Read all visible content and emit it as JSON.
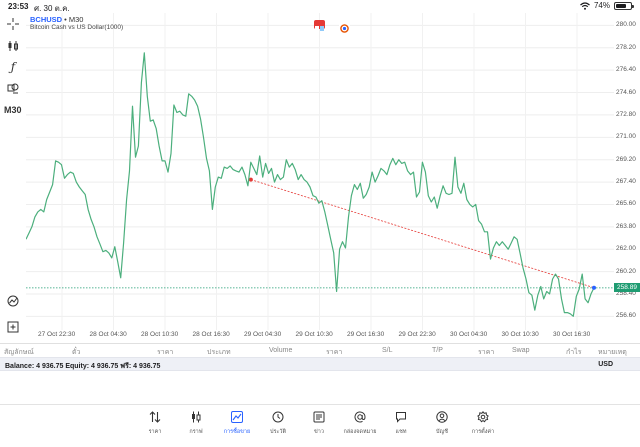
{
  "status_bar": {
    "time": "23:53",
    "date": "ศ. 30 ต.ค.",
    "battery": "74%",
    "battery_level": 0.74
  },
  "left_toolbar": {
    "items": [
      {
        "name": "crosshair-icon"
      },
      {
        "name": "candlestick-icon"
      },
      {
        "name": "function-icon"
      },
      {
        "name": "objects-icon"
      }
    ],
    "timeframe": "M30",
    "bottom_items": [
      {
        "name": "indicator-list-icon"
      },
      {
        "name": "add-indicator-icon"
      }
    ]
  },
  "chart": {
    "symbol": "BCHUSD",
    "timeframe_suffix": " • M30",
    "description": "Bitcoin Cash vs US Dollar(1000)",
    "current_price_label": "258.89",
    "colors": {
      "line": "#4caf7d",
      "trendline": "#e53935",
      "price_line": "#1f9c72",
      "accent": "#2962ff"
    }
  },
  "chart_data": {
    "type": "line",
    "ylim": [
      255.5,
      281.0
    ],
    "price_ticks": [
      "280.00",
      "278.20",
      "276.40",
      "274.60",
      "272.80",
      "271.00",
      "269.20",
      "267.40",
      "265.60",
      "263.80",
      "262.00",
      "260.20",
      "258.40",
      "256.60"
    ],
    "time_ticks": [
      "27 Oct 22:30",
      "28 Oct 04:30",
      "28 Oct 10:30",
      "28 Oct 16:30",
      "29 Oct 04:30",
      "29 Oct 10:30",
      "29 Oct 16:30",
      "29 Oct 22:30",
      "30 Oct 04:30",
      "30 Oct 10:30",
      "30 Oct 16:30"
    ],
    "series": [
      {
        "values": [
          262.8,
          263.3,
          263.8,
          264.6,
          265.0,
          265.2,
          265.0,
          266.0,
          266.6,
          267.2,
          269.1,
          269.0,
          268.8,
          267.7,
          268.0,
          268.2,
          268.1,
          267.4,
          267.0,
          266.7,
          266.4,
          265.2,
          264.4,
          263.8,
          263.0,
          262.4,
          261.8,
          261.9,
          261.7,
          261.3,
          262.2,
          261.0,
          259.7,
          262.5,
          266.0,
          268.3,
          273.5,
          269.4,
          270.3,
          275.4,
          277.8,
          274.3,
          272.3,
          272.4,
          271.7,
          270.3,
          269.1,
          269.1,
          268.2,
          269.7,
          273.6,
          273.0,
          273.1,
          272.8,
          272.7,
          274.5,
          274.3,
          274.0,
          273.5,
          272.5,
          271.0,
          269.3,
          268.3,
          265.2,
          267.0,
          267.8,
          267.7,
          268.6,
          268.5,
          268.7,
          268.4,
          268.3,
          268.2,
          268.6,
          268.0,
          267.1,
          269.0,
          268.5,
          268.0,
          269.5,
          267.8,
          268.9,
          268.1,
          268.5,
          267.4,
          268.0,
          267.6,
          267.8,
          269.2,
          268.6,
          268.9,
          268.4,
          267.6,
          268.0,
          267.6,
          267.4,
          267.0,
          266.3,
          266.2,
          265.7,
          265.9,
          265.0,
          263.9,
          262.8,
          261.7,
          258.6,
          262.0,
          262.6,
          262.1,
          264.6,
          266.3,
          267.2,
          266.8,
          267.3,
          266.1,
          266.4,
          267.0,
          268.2,
          267.4,
          267.9,
          268.5,
          268.3,
          268.0,
          268.8,
          269.3,
          268.8,
          269.2,
          268.9,
          269.0,
          268.3,
          268.0,
          268.2,
          266.2,
          266.6,
          269.0,
          268.2,
          266.3,
          265.8,
          266.2,
          265.3,
          266.3,
          267.1,
          266.5,
          266.4,
          266.5,
          269.4,
          267.0,
          266.5,
          267.3,
          266.0,
          265.6,
          265.4,
          265.6,
          264.3,
          264.0,
          263.4,
          263.4,
          261.2,
          262.1,
          262.6,
          262.3,
          262.6,
          262.3,
          262.0,
          262.5,
          263.0,
          262.8,
          261.7,
          260.5,
          259.6,
          258.5,
          258.3,
          257.1,
          258.3,
          259.0,
          258.0,
          258.6,
          258.4,
          259.6,
          260.0,
          259.6,
          258.0,
          256.9,
          256.9,
          256.8,
          256.6,
          258.2,
          258.8,
          260.0,
          258.0,
          257.7,
          258.4,
          258.9
        ]
      }
    ],
    "trendline": {
      "start_index": 76,
      "start_value": 267.6,
      "end_value": 258.9
    },
    "price_line": 258.89,
    "grid": true
  },
  "positions_header": {
    "columns": [
      "สัญลักษณ์",
      "ตั๋ว",
      "ราคา",
      "ประเภท",
      "Volume",
      "ราคา",
      "S/L",
      "T/P",
      "ราคา",
      "Swap",
      "กำไร",
      "หมายเหตุ"
    ]
  },
  "balance_bar": {
    "text": "Balance: 4 936.75 Equity: 4 936.75 ฟรี: 4 936.75",
    "currency": "USD"
  },
  "tabbar": {
    "tabs": [
      {
        "label": "ราคา",
        "icon": "quotes-icon"
      },
      {
        "label": "กราฟ",
        "icon": "charts-icon"
      },
      {
        "label": "การซื้อขาย",
        "icon": "trade-icon",
        "active": true
      },
      {
        "label": "ประวัติ",
        "icon": "history-icon"
      },
      {
        "label": "ข่าว",
        "icon": "news-icon"
      },
      {
        "label": "กล่องจดหมาย",
        "icon": "mailbox-icon"
      },
      {
        "label": "แชท",
        "icon": "chat-icon"
      },
      {
        "label": "บัญชี",
        "icon": "account-icon"
      },
      {
        "label": "การตั้งค่า",
        "icon": "settings-icon"
      }
    ]
  }
}
